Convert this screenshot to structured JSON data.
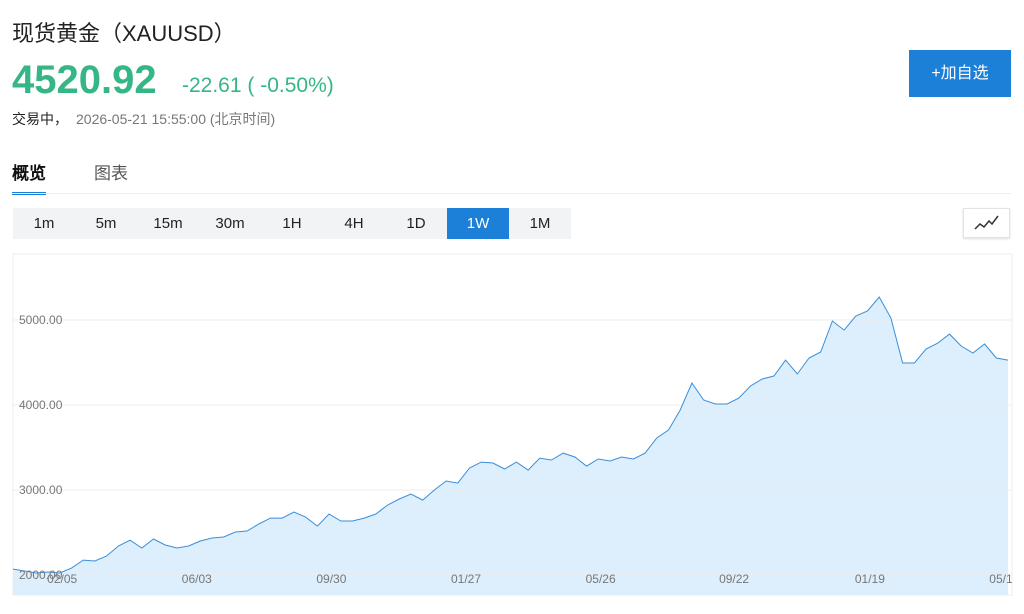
{
  "header": {
    "title": "现货黄金（XAUUSD）",
    "price": "4520.92",
    "change": "-22.61 ( -0.50%)",
    "status": "交易中，",
    "time": "2026-05-21 15:55:00 (北京时间)",
    "button": "+加自选"
  },
  "tabs": [
    "概览",
    "图表"
  ],
  "intervals": [
    "1m",
    "5m",
    "15m",
    "30m",
    "1H",
    "4H",
    "1D",
    "1W",
    "1M"
  ],
  "selected_interval": 7,
  "chart_data": {
    "type": "area",
    "color": "#3a8fdb",
    "fill": "#ddeefc",
    "grid": true,
    "values": [
      2070,
      2047,
      2024,
      2035,
      2024,
      2082,
      2176,
      2165,
      2224,
      2341,
      2410,
      2318,
      2424,
      2353,
      2318,
      2341,
      2400,
      2435,
      2447,
      2506,
      2518,
      2600,
      2670,
      2670,
      2741,
      2682,
      2576,
      2718,
      2635,
      2635,
      2670,
      2718,
      2824,
      2894,
      2953,
      2882,
      3000,
      3106,
      3082,
      3259,
      3329,
      3318,
      3247,
      3329,
      3235,
      3376,
      3353,
      3435,
      3388,
      3282,
      3365,
      3341,
      3388,
      3365,
      3435,
      3612,
      3706,
      3941,
      4259,
      4059,
      4012,
      4012,
      4082,
      4224,
      4306,
      4341,
      4529,
      4365,
      4553,
      4624,
      4988,
      4882,
      5047,
      5106,
      5271,
      5024,
      4494,
      4494,
      4659,
      4729,
      4835,
      4694,
      4612,
      4718,
      4553,
      4529
    ],
    "xlim": [
      0,
      85
    ],
    "xticks": [
      {
        "value": 4.2,
        "label": "02/05"
      },
      {
        "value": 15.7,
        "label": "06/03"
      },
      {
        "value": 27.2,
        "label": "09/30"
      },
      {
        "value": 38.7,
        "label": "01/27"
      },
      {
        "value": 50.2,
        "label": "05/26"
      },
      {
        "value": 61.6,
        "label": "09/22"
      },
      {
        "value": 73.2,
        "label": "01/19"
      },
      {
        "value": 84.4,
        "label": "05/1"
      }
    ],
    "ylim": [
      1765,
      5765
    ],
    "yticks": [
      {
        "value": 2000,
        "label": "2000.00"
      },
      {
        "value": 3000,
        "label": "3000.00"
      },
      {
        "value": 4000,
        "label": "4000.00"
      },
      {
        "value": 5000,
        "label": "5000.00"
      }
    ]
  }
}
